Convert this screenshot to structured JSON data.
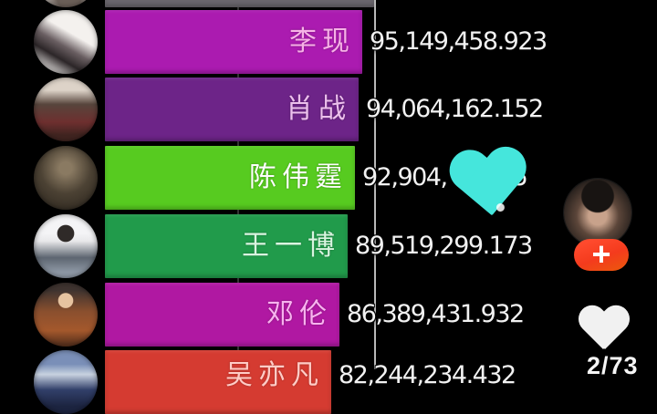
{
  "chart_data": {
    "type": "bar",
    "orientation": "horizontal",
    "title": "",
    "categories": [
      "李现",
      "肖战",
      "陈伟霆",
      "王一博",
      "邓伦",
      "吴亦凡"
    ],
    "values": [
      95149458.923,
      94064162.152,
      null,
      89519299.173,
      86389431.932,
      null
    ],
    "value_labels": [
      "95,149,458.923",
      "94,064,162.152",
      "92,904,…5",
      "89,519,299.173",
      "86,389,431.932",
      "82,244,234.432"
    ],
    "bar_colors": [
      "#ab1bb0",
      "#6d2488",
      "#57cb20",
      "#219b4b",
      "#b018a2",
      "#d53b31"
    ],
    "partial_leader_bar_color": "#6a666d",
    "legend": false,
    "grid": "single vertical gridline"
  },
  "rows": [
    {
      "name": "",
      "value": ""
    },
    {
      "name": "李现",
      "value": "95,149,458.923"
    },
    {
      "name": "肖战",
      "value": "94,064,162.152"
    },
    {
      "name": "陈伟霆",
      "value_prefix": "92,904,",
      "value_suffix": "5"
    },
    {
      "name": "王一博",
      "value": "89,519,299.173"
    },
    {
      "name": "邓伦",
      "value": "86,389,431.932"
    },
    {
      "name": "吴亦凡",
      "value": "82,244,234.432"
    }
  ],
  "overlay": {
    "follow_plus": "+",
    "counter": "2/73"
  },
  "colors": {
    "bars": [
      "#6a666d",
      "#ab1bb0",
      "#6d2488",
      "#57cb20",
      "#219b4b",
      "#b018a2",
      "#d53b31"
    ],
    "cyan_heart": "#45e6dc",
    "follow_button": "#f43b1d",
    "like_heart": "#f1f1f1",
    "gridline": "#b8b8b8"
  }
}
